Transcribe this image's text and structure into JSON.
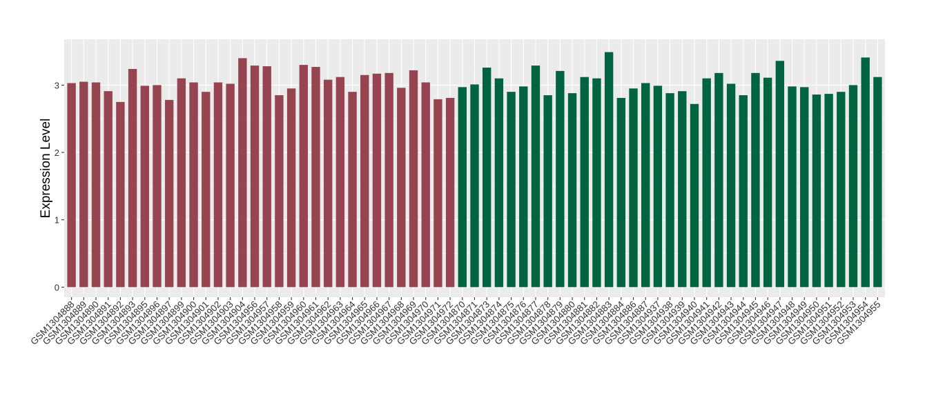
{
  "chart_data": {
    "type": "bar",
    "ylabel": "Expression Level",
    "xlabel": "",
    "ylim": [
      -0.15,
      3.68
    ],
    "y_ticks": [
      0,
      1,
      2,
      3
    ],
    "grid": true,
    "legend": "none",
    "colors": {
      "group1": "#96444F",
      "group2": "#006441",
      "panel": "#EBEBEB",
      "grid": "#FFFFFF"
    },
    "series": [
      {
        "color": "#96444F",
        "categories": [
          "GSM1304888",
          "GSM1304889",
          "GSM1304890",
          "GSM1304891",
          "GSM1304892",
          "GSM1304893",
          "GSM1304895",
          "GSM1304896",
          "GSM1304897",
          "GSM1304899",
          "GSM1304900",
          "GSM1304901",
          "GSM1304902",
          "GSM1304903",
          "GSM1304904",
          "GSM1304956",
          "GSM1304957",
          "GSM1304958",
          "GSM1304959",
          "GSM1304960",
          "GSM1304961",
          "GSM1304962",
          "GSM1304963",
          "GSM1304964",
          "GSM1304965",
          "GSM1304966",
          "GSM1304967",
          "GSM1304968",
          "GSM1304969",
          "GSM1304970",
          "GSM1304971",
          "GSM1304972"
        ],
        "values": [
          3.03,
          3.05,
          3.04,
          2.91,
          2.75,
          3.24,
          2.99,
          3.0,
          2.78,
          3.1,
          3.04,
          2.9,
          3.04,
          3.02,
          3.4,
          3.29,
          3.28,
          2.85,
          2.95,
          3.3,
          3.27,
          3.08,
          3.12,
          2.9,
          3.15,
          3.17,
          3.18,
          2.96,
          3.22,
          3.04,
          2.79,
          2.81
        ]
      },
      {
        "color": "#006441",
        "categories": [
          "GSM1304870",
          "GSM1304871",
          "GSM1304873",
          "GSM1304874",
          "GSM1304875",
          "GSM1304876",
          "GSM1304877",
          "GSM1304878",
          "GSM1304879",
          "GSM1304880",
          "GSM1304881",
          "GSM1304882",
          "GSM1304883",
          "GSM1304884",
          "GSM1304886",
          "GSM1304887",
          "GSM1304937",
          "GSM1304938",
          "GSM1304939",
          "GSM1304940",
          "GSM1304941",
          "GSM1304942",
          "GSM1304943",
          "GSM1304944",
          "GSM1304945",
          "GSM1304946",
          "GSM1304947",
          "GSM1304948",
          "GSM1304949",
          "GSM1304950",
          "GSM1304951",
          "GSM1304952",
          "GSM1304953",
          "GSM1304954",
          "GSM1304955"
        ],
        "values": [
          2.97,
          3.01,
          3.26,
          3.1,
          2.9,
          2.98,
          3.29,
          2.85,
          3.21,
          2.88,
          3.12,
          3.1,
          3.49,
          2.81,
          2.95,
          3.03,
          2.99,
          2.88,
          2.91,
          2.72,
          3.1,
          3.18,
          3.02,
          2.85,
          3.18,
          3.11,
          3.36,
          2.98,
          2.97,
          2.86,
          2.87,
          2.9,
          3.0,
          3.41,
          3.12
        ]
      }
    ]
  }
}
